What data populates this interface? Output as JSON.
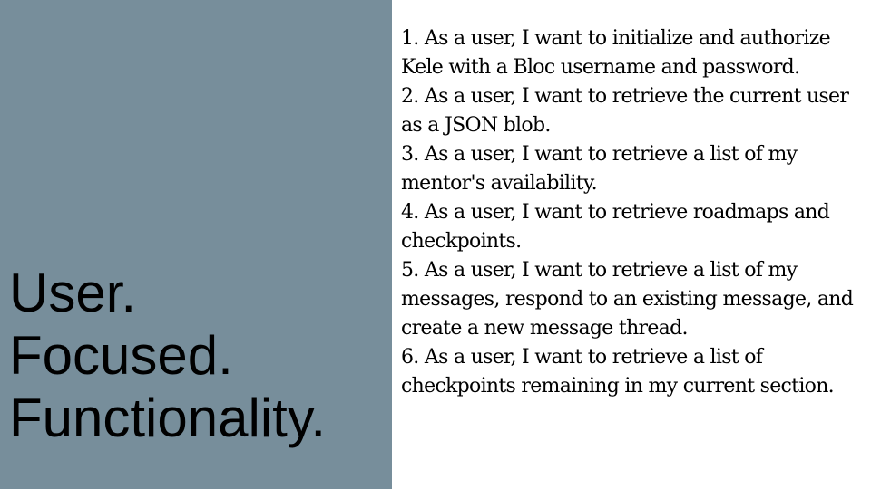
{
  "headline": {
    "line1": "User.",
    "line2": "Focused.",
    "line3": "Functionality."
  },
  "stories": [
    "1. As a user, I want to initialize and authorize Kele with a Bloc username and password.",
    "2. As a user, I want to retrieve the current user as a JSON blob.",
    "3. As a user, I want to retrieve a list of my mentor's availability.",
    "4. As a user, I want to retrieve roadmaps and checkpoints.",
    "5. As a user, I want to retrieve a list of my messages, respond to an existing message, and create a new message thread.",
    "6. As a user, I want to retrieve a list of checkpoints remaining in my current section."
  ],
  "colors": {
    "left_panel": "#778e9b",
    "background": "#ffffff",
    "text": "#000000"
  }
}
